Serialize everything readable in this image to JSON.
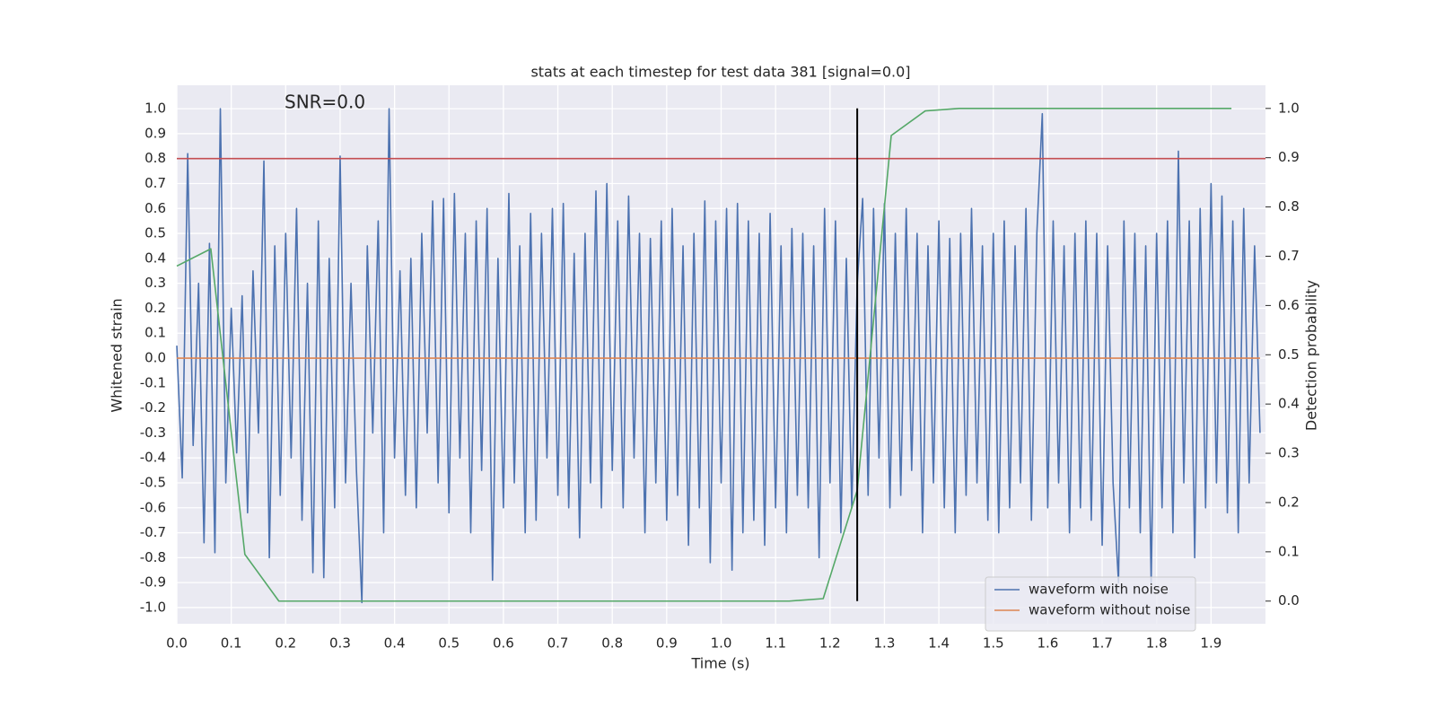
{
  "chart_data": {
    "type": "line",
    "title": "stats at each timestep for test data 381 [signal=0.0]",
    "xlabel": "Time (s)",
    "ylabel": "Whitened strain",
    "y2label": "Detection probability",
    "annotation": "SNR=0.0",
    "grid": true,
    "legend": "lower right",
    "xlim": [
      0,
      2.0
    ],
    "ylim": [
      -1.065,
      1.094
    ],
    "y2lim": [
      -0.046,
      1.047
    ],
    "xticks": [
      {
        "value": 0,
        "label": "0.0"
      },
      0.1,
      0.2,
      0.3,
      0.4,
      0.5,
      0.6,
      0.7,
      0.8,
      0.9,
      {
        "value": 1,
        "label": "1.0"
      },
      1.1,
      1.2,
      1.3,
      1.4,
      1.5,
      1.6,
      1.7,
      1.8,
      1.9
    ],
    "yticks": [
      {
        "value": -1,
        "label": "-1.0"
      },
      -0.9,
      -0.8,
      -0.7,
      -0.6,
      -0.5,
      -0.4,
      -0.3,
      -0.2,
      -0.1,
      {
        "value": 0,
        "label": "0.0"
      },
      0.1,
      0.2,
      0.3,
      0.4,
      0.5,
      0.6,
      0.7,
      0.8,
      0.9,
      {
        "value": 1,
        "label": "1.0"
      }
    ],
    "y2ticks": [
      {
        "value": 0,
        "label": "0.0"
      },
      0.1,
      0.2,
      0.3,
      0.4,
      0.5,
      0.6,
      0.7,
      0.8,
      0.9,
      {
        "value": 1,
        "label": "1.0"
      }
    ],
    "hlines": [
      {
        "y": 0.8,
        "color": "#c44e52"
      }
    ],
    "vlines": [
      {
        "x": 1.25,
        "ymin": 0,
        "ymax": 1,
        "axis": "y2",
        "color": "#000000"
      }
    ],
    "series": [
      {
        "name": "waveform with noise",
        "color": "#4c72b0",
        "x": [
          0,
          0.01,
          0.02,
          0.03,
          0.04,
          0.05,
          0.06,
          0.07,
          0.08,
          0.09,
          0.1,
          0.11,
          0.12,
          0.13,
          0.14,
          0.15,
          0.16,
          0.17,
          0.18,
          0.19,
          0.2,
          0.21,
          0.22,
          0.23,
          0.24,
          0.25,
          0.26,
          0.27,
          0.28,
          0.29,
          0.3,
          0.31,
          0.32,
          0.33,
          0.34,
          0.35,
          0.36,
          0.37,
          0.38,
          0.39,
          0.4,
          0.41,
          0.42,
          0.43,
          0.44,
          0.45,
          0.46,
          0.47,
          0.48,
          0.49,
          0.5,
          0.51,
          0.52,
          0.53,
          0.54,
          0.55,
          0.56,
          0.57,
          0.58,
          0.59,
          0.6,
          0.61,
          0.62,
          0.63,
          0.64,
          0.65,
          0.66,
          0.67,
          0.68,
          0.69,
          0.7,
          0.71,
          0.72,
          0.73,
          0.74,
          0.75,
          0.76,
          0.77,
          0.78,
          0.79,
          0.8,
          0.81,
          0.82,
          0.83,
          0.84,
          0.85,
          0.86,
          0.87,
          0.88,
          0.89,
          0.9,
          0.91,
          0.92,
          0.93,
          0.94,
          0.95,
          0.96,
          0.97,
          0.98,
          0.99,
          1,
          1.01,
          1.02,
          1.03,
          1.04,
          1.05,
          1.06,
          1.07,
          1.08,
          1.09,
          1.1,
          1.11,
          1.12,
          1.13,
          1.14,
          1.15,
          1.16,
          1.17,
          1.18,
          1.19,
          1.2,
          1.21,
          1.22,
          1.23,
          1.24,
          1.25,
          1.26,
          1.27,
          1.28,
          1.29,
          1.3,
          1.31,
          1.32,
          1.33,
          1.34,
          1.35,
          1.36,
          1.37,
          1.38,
          1.39,
          1.4,
          1.41,
          1.42,
          1.43,
          1.44,
          1.45,
          1.46,
          1.47,
          1.48,
          1.49,
          1.5,
          1.51,
          1.52,
          1.53,
          1.54,
          1.55,
          1.56,
          1.57,
          1.58,
          1.59,
          1.6,
          1.61,
          1.62,
          1.63,
          1.64,
          1.65,
          1.66,
          1.67,
          1.68,
          1.69,
          1.7,
          1.71,
          1.72,
          1.73,
          1.74,
          1.75,
          1.76,
          1.77,
          1.78,
          1.79,
          1.8,
          1.81,
          1.82,
          1.83,
          1.84,
          1.85,
          1.86,
          1.87,
          1.88,
          1.89,
          1.9,
          1.91,
          1.92,
          1.93,
          1.94,
          1.95,
          1.96,
          1.97,
          1.98,
          1.99
        ],
        "values": [
          0.05,
          -0.48,
          0.82,
          -0.35,
          0.3,
          -0.74,
          0.46,
          -0.78,
          1.0,
          -0.5,
          0.2,
          -0.38,
          0.25,
          -0.62,
          0.35,
          -0.3,
          0.79,
          -0.8,
          0.45,
          -0.55,
          0.5,
          -0.4,
          0.6,
          -0.65,
          0.3,
          -0.86,
          0.55,
          -0.88,
          0.4,
          -0.6,
          0.81,
          -0.5,
          0.3,
          -0.45,
          -0.98,
          0.45,
          -0.3,
          0.55,
          -0.7,
          1.0,
          -0.4,
          0.35,
          -0.55,
          0.4,
          -0.6,
          0.5,
          -0.3,
          0.63,
          -0.5,
          0.64,
          -0.62,
          0.66,
          -0.4,
          0.5,
          -0.7,
          0.55,
          -0.45,
          0.6,
          -0.89,
          0.4,
          -0.6,
          0.66,
          -0.5,
          0.45,
          -0.7,
          0.58,
          -0.65,
          0.5,
          -0.4,
          0.6,
          -0.55,
          0.62,
          -0.6,
          0.42,
          -0.72,
          0.5,
          -0.5,
          0.67,
          -0.6,
          0.7,
          -0.45,
          0.55,
          -0.6,
          0.65,
          -0.4,
          0.5,
          -0.7,
          0.48,
          -0.5,
          0.55,
          -0.65,
          0.6,
          -0.55,
          0.45,
          -0.75,
          0.5,
          -0.6,
          0.63,
          -0.82,
          0.55,
          -0.5,
          0.6,
          -0.85,
          0.62,
          -0.7,
          0.55,
          -0.65,
          0.5,
          -0.75,
          0.58,
          -0.6,
          0.45,
          -0.7,
          0.52,
          -0.55,
          0.5,
          -0.6,
          0.45,
          -0.8,
          0.6,
          -0.5,
          0.55,
          -0.7,
          0.4,
          -0.6,
          0.3,
          0.64,
          -0.55,
          0.6,
          -0.4,
          0.62,
          -0.6,
          0.5,
          -0.55,
          0.6,
          -0.45,
          0.5,
          -0.7,
          0.45,
          -0.5,
          0.55,
          -0.6,
          0.48,
          -0.7,
          0.5,
          -0.55,
          0.6,
          -0.5,
          0.45,
          -0.65,
          0.5,
          -0.7,
          0.55,
          -0.6,
          0.45,
          -0.5,
          0.6,
          -0.65,
          0.5,
          0.98,
          -0.6,
          0.55,
          -0.5,
          0.45,
          -0.7,
          0.5,
          -0.6,
          0.55,
          -0.65,
          0.5,
          -0.75,
          0.45,
          -0.5,
          -0.9,
          0.55,
          -0.6,
          0.5,
          -0.7,
          0.45,
          -0.9,
          0.5,
          -0.6,
          0.55,
          -0.7,
          0.83,
          -0.5,
          0.55,
          -0.8,
          0.6,
          -0.6,
          0.7,
          -0.5,
          0.65,
          -0.62,
          0.55,
          -0.7,
          0.6,
          -0.5,
          0.45,
          -0.3
        ]
      },
      {
        "name": "waveform without noise",
        "color": "#dd8452",
        "x": [
          0,
          1.99
        ],
        "values": [
          0,
          0
        ]
      },
      {
        "color": "#55a868",
        "axis": "y2",
        "x": [
          0,
          0.0625,
          0.125,
          0.1875,
          0.25,
          0.3125,
          0.375,
          0.4375,
          0.5,
          0.5625,
          0.625,
          0.6875,
          0.75,
          0.8125,
          0.875,
          0.9375,
          1,
          1.0625,
          1.125,
          1.1875,
          1.25,
          1.3125,
          1.375,
          1.4375,
          1.5,
          1.5625,
          1.625,
          1.6875,
          1.75,
          1.8125,
          1.875,
          1.9375
        ],
        "values": [
          0.68,
          0.715,
          0.095,
          0,
          0,
          0,
          0,
          0,
          0,
          0,
          0,
          0,
          0,
          0,
          0,
          0,
          0,
          0,
          0,
          0.005,
          0.225,
          0.945,
          0.995,
          1,
          1,
          1,
          1,
          1,
          1,
          1,
          1,
          1
        ]
      }
    ]
  }
}
